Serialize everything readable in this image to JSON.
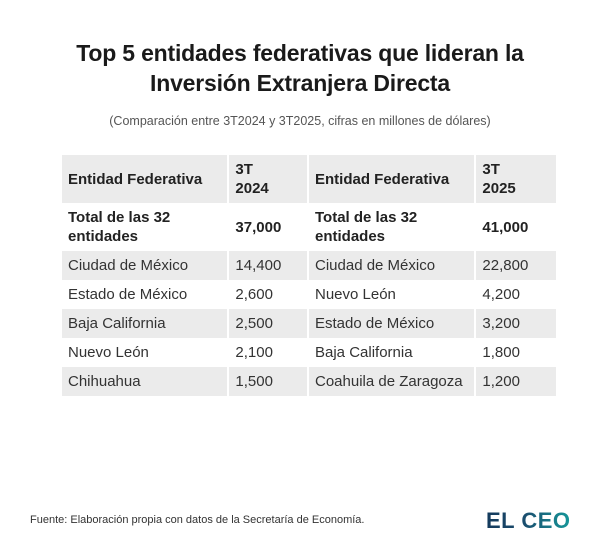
{
  "title": {
    "line1": "Top 5 entidades federativas que lideran la",
    "line2": "Inversión Extranjera Directa"
  },
  "subtitle": "(Comparación entre 3T2024 y 3T2025, cifras en millones de dólares)",
  "table": {
    "headers": {
      "entity_2024": "Entidad Federativa",
      "period_2024_line1": "3T",
      "period_2024_line2": "2024",
      "entity_2025": "Entidad Federativa",
      "period_2025_line1": "3T",
      "period_2025_line2": "2025"
    },
    "total": {
      "label_line1": "Total de las 32",
      "label_line2": "entidades",
      "value_2024": "37,000",
      "value_2025": "41,000"
    },
    "rows": [
      {
        "entity_2024": "Ciudad de México",
        "value_2024": "14,400",
        "entity_2025": "Ciudad de México",
        "value_2025": "22,800"
      },
      {
        "entity_2024": "Estado de México",
        "value_2024": "2,600",
        "entity_2025": "Nuevo León",
        "value_2025": "4,200"
      },
      {
        "entity_2024": "Baja California",
        "value_2024": "2,500",
        "entity_2025": "Estado de México",
        "value_2025": "3,200"
      },
      {
        "entity_2024": "Nuevo León",
        "value_2024": "2,100",
        "entity_2025": "Baja California",
        "value_2025": "1,800"
      },
      {
        "entity_2024": "Chihuahua",
        "value_2024": "1,500",
        "entity_2025": "Coahuila de Zaragoza",
        "value_2025": "1,200"
      }
    ]
  },
  "footer": {
    "source": "Fuente: Elaboración propia con datos de la Secretaría de Economía.",
    "logo": "EL CEO"
  },
  "colors": {
    "row_shade": "#ebebeb",
    "logo_dark": "#143a5c",
    "logo_teal": "#16989a"
  }
}
